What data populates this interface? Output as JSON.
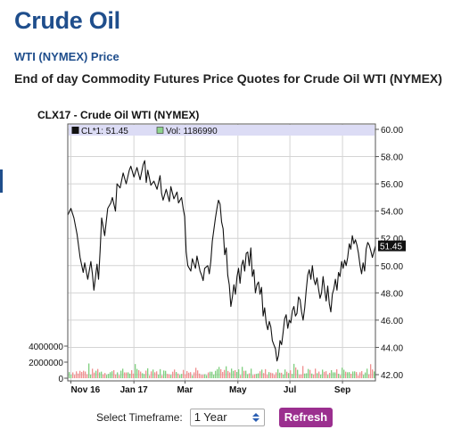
{
  "header": {
    "title": "Crude Oil",
    "subtitle": "WTI (NYMEX) Price",
    "description": "End of day Commodity Futures Price Quotes for Crude Oil WTI (NYMEX)"
  },
  "controls": {
    "timeframe_label": "Select Timeframe:",
    "timeframe_value": "1 Year",
    "refresh_label": "Refresh"
  },
  "chart_data": {
    "type": "line",
    "title": "CLX17 - Crude Oil WTI (NYMEX)",
    "legend": {
      "price_label": "CL*1: 51.45",
      "volume_label": "Vol: 1186990",
      "placement": "top"
    },
    "last_price_label": "51.45",
    "price_axis": {
      "side": "right",
      "ylim": [
        42,
        60
      ],
      "ticks": [
        "60.00",
        "58.00",
        "56.00",
        "54.00",
        "52.00",
        "50.00",
        "48.00",
        "46.00",
        "44.00",
        "42.00"
      ]
    },
    "volume_axis": {
      "side": "left",
      "ylim": [
        0,
        4000000
      ],
      "ticks": [
        "4000000",
        "2000000",
        "0"
      ]
    },
    "x_axis": {
      "ticks": [
        {
          "label": "Nov 16",
          "t": 0.01
        },
        {
          "label": "Jan 17",
          "t": 0.215
        },
        {
          "label": "Mar",
          "t": 0.381
        },
        {
          "label": "May",
          "t": 0.553
        },
        {
          "label": "Jul",
          "t": 0.722
        },
        {
          "label": "Sep",
          "t": 0.893
        }
      ]
    },
    "grid": true,
    "price_series": {
      "name": "CL*1",
      "points": [
        [
          0.0,
          53.7
        ],
        [
          0.01,
          54.2
        ],
        [
          0.02,
          53.5
        ],
        [
          0.03,
          52.3
        ],
        [
          0.04,
          50.6
        ],
        [
          0.05,
          49.5
        ],
        [
          0.055,
          50.2
        ],
        [
          0.065,
          49.0
        ],
        [
          0.075,
          50.3
        ],
        [
          0.08,
          49.4
        ],
        [
          0.085,
          48.2
        ],
        [
          0.095,
          50.1
        ],
        [
          0.1,
          49.0
        ],
        [
          0.105,
          51.0
        ],
        [
          0.11,
          53.5
        ],
        [
          0.12,
          52.2
        ],
        [
          0.13,
          54.2
        ],
        [
          0.14,
          54.6
        ],
        [
          0.145,
          55.0
        ],
        [
          0.155,
          54.0
        ],
        [
          0.16,
          56.0
        ],
        [
          0.17,
          55.7
        ],
        [
          0.18,
          56.8
        ],
        [
          0.19,
          56.0
        ],
        [
          0.2,
          57.0
        ],
        [
          0.205,
          57.3
        ],
        [
          0.215,
          56.5
        ],
        [
          0.225,
          57.2
        ],
        [
          0.235,
          56.3
        ],
        [
          0.245,
          57.4
        ],
        [
          0.25,
          57.7
        ],
        [
          0.255,
          56.1
        ],
        [
          0.26,
          57.0
        ],
        [
          0.27,
          55.9
        ],
        [
          0.28,
          56.2
        ],
        [
          0.29,
          55.6
        ],
        [
          0.3,
          56.6
        ],
        [
          0.305,
          55.3
        ],
        [
          0.31,
          54.8
        ],
        [
          0.32,
          55.6
        ],
        [
          0.33,
          54.7
        ],
        [
          0.335,
          55.8
        ],
        [
          0.345,
          54.9
        ],
        [
          0.355,
          55.4
        ],
        [
          0.36,
          54.6
        ],
        [
          0.37,
          55.0
        ],
        [
          0.375,
          54.2
        ],
        [
          0.38,
          53.6
        ],
        [
          0.385,
          51.0
        ],
        [
          0.39,
          50.0
        ],
        [
          0.4,
          49.6
        ],
        [
          0.405,
          50.5
        ],
        [
          0.415,
          49.8
        ],
        [
          0.42,
          50.7
        ],
        [
          0.43,
          49.6
        ],
        [
          0.435,
          49.3
        ],
        [
          0.44,
          48.9
        ],
        [
          0.445,
          49.8
        ],
        [
          0.455,
          50.0
        ],
        [
          0.46,
          49.4
        ],
        [
          0.465,
          50.3
        ],
        [
          0.47,
          51.8
        ],
        [
          0.48,
          53.5
        ],
        [
          0.485,
          54.2
        ],
        [
          0.49,
          54.8
        ],
        [
          0.495,
          54.5
        ],
        [
          0.5,
          53.2
        ],
        [
          0.505,
          52.7
        ],
        [
          0.51,
          50.8
        ],
        [
          0.515,
          51.3
        ],
        [
          0.52,
          49.3
        ],
        [
          0.525,
          48.6
        ],
        [
          0.53,
          47.0
        ],
        [
          0.535,
          47.7
        ],
        [
          0.54,
          48.6
        ],
        [
          0.545,
          47.9
        ],
        [
          0.55,
          49.2
        ],
        [
          0.555,
          49.8
        ],
        [
          0.56,
          48.7
        ],
        [
          0.565,
          50.0
        ],
        [
          0.57,
          50.4
        ],
        [
          0.575,
          49.6
        ],
        [
          0.58,
          50.9
        ],
        [
          0.585,
          51.0
        ],
        [
          0.59,
          50.0
        ],
        [
          0.595,
          51.3
        ],
        [
          0.6,
          49.2
        ],
        [
          0.605,
          49.7
        ],
        [
          0.61,
          48.0
        ],
        [
          0.615,
          48.6
        ],
        [
          0.62,
          48.8
        ],
        [
          0.625,
          47.9
        ],
        [
          0.63,
          48.4
        ],
        [
          0.635,
          46.3
        ],
        [
          0.64,
          46.9
        ],
        [
          0.645,
          45.8
        ],
        [
          0.65,
          45.3
        ],
        [
          0.655,
          45.9
        ],
        [
          0.66,
          45.5
        ],
        [
          0.665,
          44.5
        ],
        [
          0.67,
          44.2
        ],
        [
          0.675,
          43.9
        ],
        [
          0.68,
          43.0
        ],
        [
          0.685,
          43.4
        ],
        [
          0.69,
          44.5
        ],
        [
          0.695,
          44.2
        ],
        [
          0.7,
          45.1
        ],
        [
          0.705,
          46.1
        ],
        [
          0.71,
          46.4
        ],
        [
          0.715,
          45.4
        ],
        [
          0.72,
          46.0
        ],
        [
          0.725,
          45.8
        ],
        [
          0.73,
          46.7
        ],
        [
          0.735,
          47.0
        ],
        [
          0.74,
          46.3
        ],
        [
          0.745,
          46.5
        ],
        [
          0.75,
          47.7
        ],
        [
          0.755,
          47.5
        ],
        [
          0.76,
          46.6
        ],
        [
          0.765,
          46.0
        ],
        [
          0.77,
          46.9
        ],
        [
          0.775,
          48.2
        ],
        [
          0.78,
          49.3
        ],
        [
          0.785,
          49.7
        ],
        [
          0.79,
          49.0
        ],
        [
          0.795,
          50.0
        ],
        [
          0.8,
          49.0
        ],
        [
          0.805,
          48.6
        ],
        [
          0.81,
          49.1
        ],
        [
          0.815,
          48.3
        ],
        [
          0.82,
          47.6
        ],
        [
          0.825,
          48.0
        ],
        [
          0.83,
          49.2
        ],
        [
          0.835,
          48.2
        ],
        [
          0.84,
          47.4
        ],
        [
          0.845,
          48.5
        ],
        [
          0.85,
          47.2
        ],
        [
          0.855,
          46.6
        ],
        [
          0.86,
          47.9
        ],
        [
          0.865,
          48.3
        ],
        [
          0.87,
          49.0
        ],
        [
          0.875,
          48.2
        ],
        [
          0.88,
          49.5
        ],
        [
          0.885,
          49.2
        ],
        [
          0.89,
          50.3
        ],
        [
          0.895,
          49.8
        ],
        [
          0.9,
          50.4
        ],
        [
          0.905,
          50.0
        ],
        [
          0.91,
          50.6
        ],
        [
          0.915,
          51.6
        ],
        [
          0.92,
          51.2
        ],
        [
          0.925,
          52.2
        ],
        [
          0.93,
          51.6
        ],
        [
          0.935,
          51.9
        ],
        [
          0.94,
          51.5
        ],
        [
          0.945,
          50.9
        ],
        [
          0.95,
          50.0
        ],
        [
          0.955,
          49.4
        ],
        [
          0.96,
          50.2
        ],
        [
          0.965,
          49.6
        ],
        [
          0.97,
          51.2
        ],
        [
          0.975,
          51.7
        ],
        [
          0.98,
          51.5
        ],
        [
          0.985,
          51.1
        ],
        [
          0.99,
          50.6
        ],
        [
          1.0,
          51.45
        ]
      ]
    },
    "volume_series": {
      "name": "Vol"
    }
  }
}
